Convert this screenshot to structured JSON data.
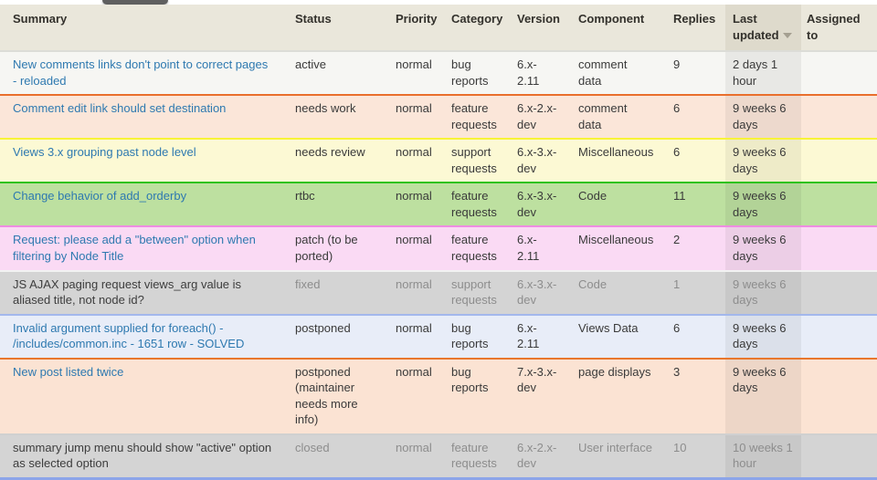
{
  "header": {
    "columns": [
      {
        "label": "Summary"
      },
      {
        "label": "Status"
      },
      {
        "label": "Priority"
      },
      {
        "label": "Category"
      },
      {
        "label": "Version"
      },
      {
        "label": "Component"
      },
      {
        "label": "Replies"
      },
      {
        "label": "Last updated",
        "sorted": "desc"
      },
      {
        "label": "Assigned to"
      }
    ]
  },
  "fields": [
    "summary",
    "status",
    "priority",
    "category",
    "version",
    "component",
    "replies",
    "last_updated",
    "assigned_to"
  ],
  "colors": {
    "header_bg": "#eae7db",
    "header_active_bg": "#dedacc",
    "link_blue": "#2e79b0",
    "table_bottom_border": "#8ca5e9",
    "sort_arrow": "#a49f90"
  },
  "rows": [
    {
      "summary": "New comments links don't point to correct pages - reloaded",
      "status": "active",
      "priority": "normal",
      "category": "bug reports",
      "version": "6.x-2.11",
      "component": "comment data",
      "replies": "9",
      "last_updated": "2 days 1 hour",
      "assigned_to": "",
      "row_color": "#f6f6f3",
      "border_color": "#dcdcd7",
      "summary_is_link": true,
      "muted": false
    },
    {
      "summary": "Comment edit link should set destination",
      "status": "needs work",
      "priority": "normal",
      "category": "feature requests",
      "version": "6.x-2.x-dev",
      "component": "comment data",
      "replies": "6",
      "last_updated": "9 weeks 6 days",
      "assigned_to": "",
      "row_color": "#fbe6d9",
      "border_color": "#e96f2d",
      "summary_is_link": true,
      "muted": false
    },
    {
      "summary": "Views 3.x grouping past node level",
      "status": "needs review",
      "priority": "normal",
      "category": "support requests",
      "version": "6.x-3.x-dev",
      "component": "Miscellaneous",
      "replies": "6",
      "last_updated": "9 weeks 6 days",
      "assigned_to": "",
      "row_color": "#fcf9d4",
      "border_color": "#f8f338",
      "summary_is_link": true,
      "muted": false
    },
    {
      "summary": "Change behavior of add_orderby",
      "status": "rtbc",
      "priority": "normal",
      "category": "feature requests",
      "version": "6.x-3.x-dev",
      "component": "Code",
      "replies": "11",
      "last_updated": "9 weeks 6 days",
      "assigned_to": "",
      "row_color": "#bde0a0",
      "border_color": "#2ec21c",
      "summary_is_link": true,
      "muted": false
    },
    {
      "summary": "Request: please add a \"between\" option when filtering by Node Title",
      "status": "patch (to be ported)",
      "priority": "normal",
      "category": "feature requests",
      "version": "6.x-2.11",
      "component": "Miscellaneous",
      "replies": "2",
      "last_updated": "9 weeks 6 days",
      "assigned_to": "",
      "row_color": "#fadaf4",
      "border_color": "#ef8ce2",
      "summary_is_link": true,
      "muted": false
    },
    {
      "summary": "JS AJAX paging request views_arg value is aliased title, not node id?",
      "status": "fixed",
      "priority": "normal",
      "category": "support requests",
      "version": "6.x-3.x-dev",
      "component": "Code",
      "replies": "1",
      "last_updated": "9 weeks 6 days",
      "assigned_to": "",
      "row_color": "#d4d4d4",
      "border_color": "#f2f2f2",
      "summary_is_link": false,
      "muted": true
    },
    {
      "summary": "Invalid argument supplied for foreach() - /includes/common.inc - 1651 row - SOLVED",
      "status": "postponed",
      "priority": "normal",
      "category": "bug reports",
      "version": "6.x-2.11",
      "component": "Views Data",
      "replies": "6",
      "last_updated": "9 weeks 6 days",
      "assigned_to": "",
      "row_color": "#e8edf8",
      "border_color": "#a3b7ec",
      "summary_is_link": true,
      "muted": false
    },
    {
      "summary": "New post listed twice",
      "status": "postponed (maintainer needs more info)",
      "priority": "normal",
      "category": "bug reports",
      "version": "7.x-3.x-dev",
      "component": "page displays",
      "replies": "3",
      "last_updated": "9 weeks 6 days",
      "assigned_to": "",
      "row_color": "#fbe3d3",
      "border_color": "#e9772c",
      "summary_is_link": true,
      "muted": false
    },
    {
      "summary": "summary jump menu should show \"active\" option as selected option",
      "status": "closed",
      "priority": "normal",
      "category": "feature requests",
      "version": "6.x-2.x-dev",
      "component": "User interface",
      "replies": "10",
      "last_updated": "10 weeks 1 hour",
      "assigned_to": "",
      "row_color": "#d4d4d4",
      "border_color": "#d0d0d0",
      "summary_is_link": false,
      "muted": true
    }
  ]
}
